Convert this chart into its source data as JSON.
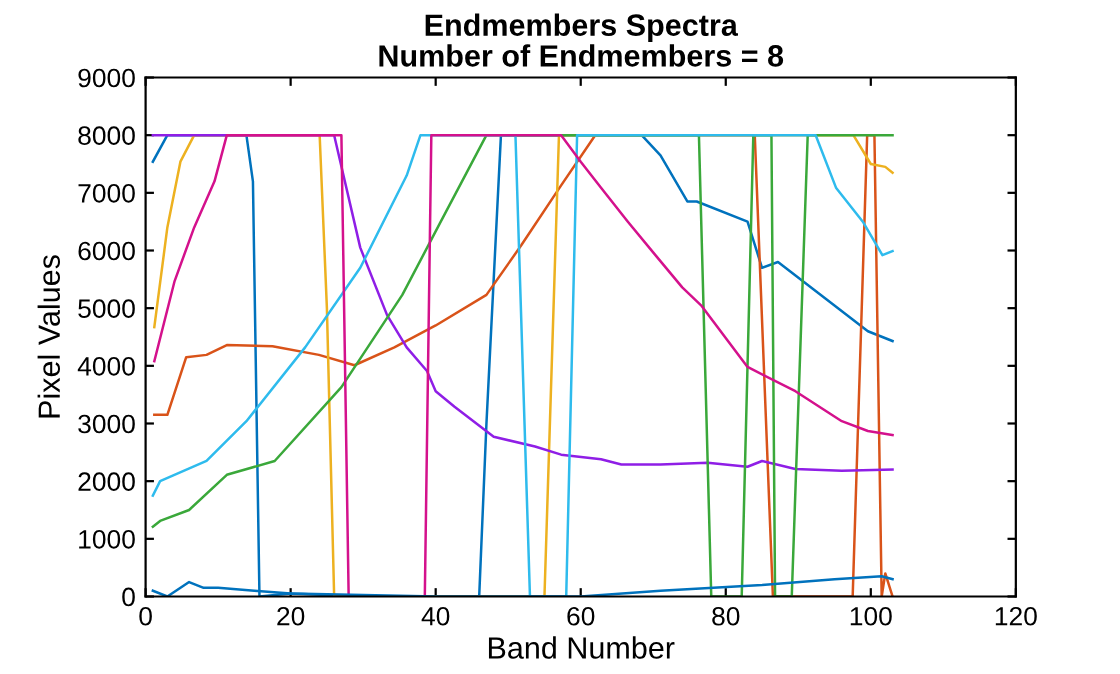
{
  "chart_data": {
    "type": "line",
    "title": "Endmembers Spectra\nNumber of Endmembers = 8",
    "xlabel": "Band Number",
    "ylabel": "Pixel Values",
    "xlim": [
      0,
      120
    ],
    "xticks": [
      0,
      20,
      40,
      60,
      80,
      100,
      120
    ],
    "ylim": [
      0,
      9000
    ],
    "yticks": [
      0,
      1000,
      2000,
      3000,
      4000,
      5000,
      6000,
      7000,
      8000,
      9000
    ],
    "grid": false,
    "legend": false,
    "marker": "none",
    "line_style": "solid",
    "series": [
      {
        "color": "#0072bd",
        "x": [
          1,
          3,
          12,
          13.9,
          14.8,
          15.7,
          20,
          30,
          46,
          47,
          49,
          62,
          68.4,
          71,
          74.7,
          76,
          83,
          85,
          87.2,
          93.2,
          99.6,
          103
        ],
        "values": [
          7540,
          8000,
          8000,
          8000,
          7200,
          0,
          50,
          0,
          0,
          3000,
          8000,
          8000,
          8000,
          7650,
          6850,
          6850,
          6500,
          5700,
          5800,
          5220,
          4600,
          4430
        ]
      },
      {
        "color": "#d95319",
        "x": [
          1.2,
          3,
          5.6,
          8.4,
          11.2,
          17.5,
          23.9,
          28.8,
          34.3,
          40,
          47,
          51.8,
          57.3,
          62,
          84,
          86.5,
          97.5,
          99.5,
          100.5,
          101.5,
          102,
          103
        ],
        "values": [
          3150,
          3150,
          4150,
          4190,
          4360,
          4340,
          4190,
          4010,
          4320,
          4700,
          5230,
          6090,
          7130,
          8000,
          8000,
          0,
          0,
          8000,
          8000,
          0,
          400,
          0
        ]
      },
      {
        "color": "#edb120",
        "x": [
          1.2,
          3,
          4.8,
          6.7,
          24,
          25,
          26,
          55,
          57,
          97.6,
          100,
          102,
          103
        ],
        "values": [
          4670,
          6400,
          7540,
          8000,
          8000,
          5000,
          0,
          0,
          8000,
          8000,
          7500,
          7450,
          7350
        ]
      },
      {
        "color": "#8f1ee6",
        "x": [
          1,
          26,
          29.6,
          33.3,
          36,
          38.8,
          40,
          42.6,
          48,
          53.7,
          57.3,
          62.8,
          65.6,
          71,
          77.5,
          83,
          85,
          89.6,
          96,
          103
        ],
        "values": [
          8000,
          8000,
          6050,
          4880,
          4320,
          3910,
          3560,
          3290,
          2770,
          2600,
          2460,
          2380,
          2290,
          2290,
          2320,
          2250,
          2350,
          2210,
          2180,
          2200
        ]
      },
      {
        "color": "#3aa83a",
        "x": [
          1,
          2,
          6,
          11.2,
          17.8,
          27,
          35.4,
          40.7,
          47,
          76.3,
          78,
          82.2,
          83.8,
          86.3,
          86.8,
          89.1,
          91.3,
          103
        ],
        "values": [
          1210,
          1310,
          1500,
          2110,
          2350,
          3630,
          5230,
          6500,
          8000,
          8000,
          0,
          0,
          8000,
          8000,
          0,
          0,
          8000,
          8000
        ]
      },
      {
        "color": "#2ebbed",
        "x": [
          1,
          2,
          8.4,
          13.9,
          22,
          29.6,
          36,
          37.9,
          51,
          53,
          58,
          59.5,
          92.4,
          95.2,
          98.9,
          101.6,
          103
        ],
        "values": [
          1750,
          2000,
          2350,
          3040,
          4320,
          5700,
          7300,
          8000,
          8000,
          0,
          0,
          8000,
          8000,
          7090,
          6500,
          5920,
          5990
        ]
      },
      {
        "color": "#d4118c",
        "x": [
          1.2,
          4,
          6.7,
          9.5,
          11.2,
          27,
          28,
          38.5,
          39.4,
          57.3,
          60,
          62.8,
          66.5,
          70.3,
          74,
          76.6,
          83,
          89.6,
          96,
          99.6,
          103
        ],
        "values": [
          4080,
          5470,
          6400,
          7200,
          8000,
          8000,
          0,
          0,
          8000,
          8000,
          7540,
          7090,
          6500,
          5920,
          5360,
          5050,
          3980,
          3560,
          3040,
          2870,
          2800
        ]
      },
      {
        "color": "#0072bd",
        "x": [
          1,
          3,
          6,
          8,
          10,
          15,
          20,
          40,
          60,
          71,
          85,
          95,
          101.5,
          103
        ],
        "values": [
          100,
          0,
          250,
          150,
          150,
          100,
          50,
          0,
          0,
          100,
          200,
          300,
          350,
          300
        ]
      }
    ]
  }
}
